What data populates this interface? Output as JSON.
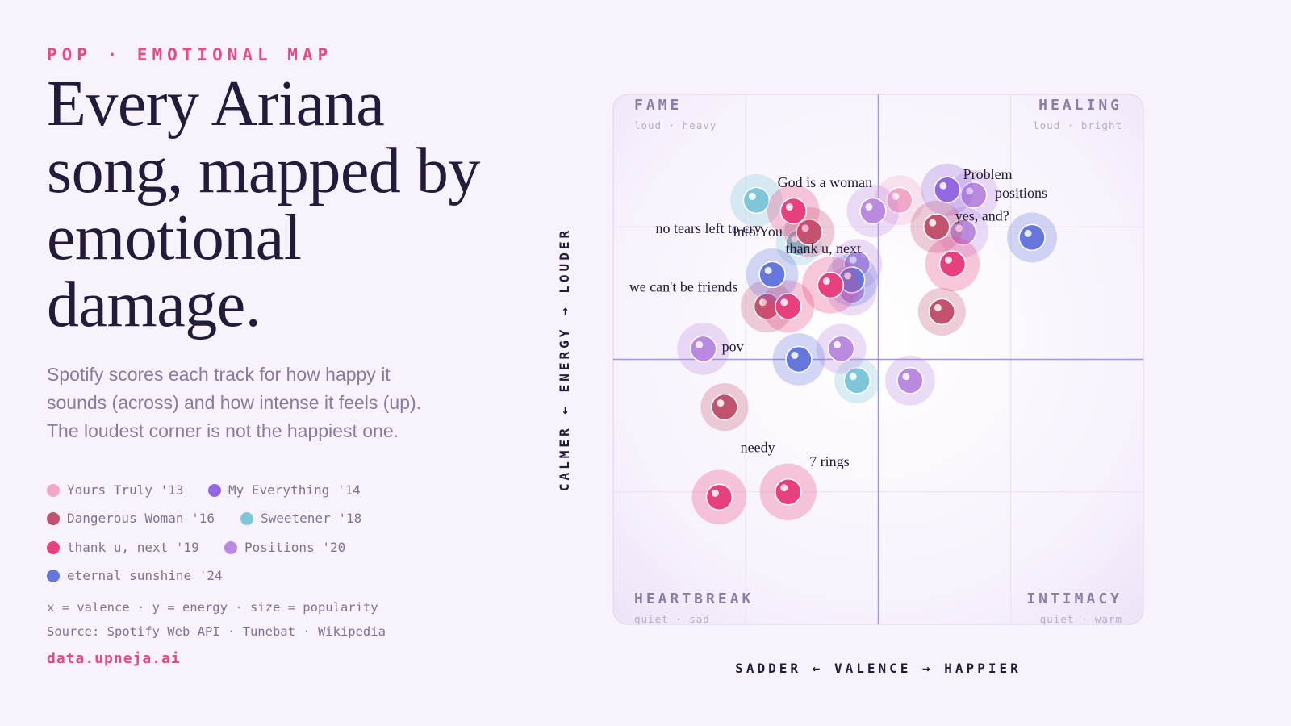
{
  "kicker": "POP · EMOTIONAL MAP",
  "headline": "Every Ariana song, mapped by emotional damage.",
  "subtitle": "Spotify scores each track for how happy it sounds (across) and how intense it feels (up). The loudest corner is not the happiest one.",
  "legend": [
    {
      "label": "Yours Truly '13",
      "color": "#f2a7c8"
    },
    {
      "label": "My Everything '14",
      "color": "#9466e0"
    },
    {
      "label": "Dangerous Woman '16",
      "color": "#c2536e"
    },
    {
      "label": "Sweetener '18",
      "color": "#7ec6d8"
    },
    {
      "label": "thank u, next '19",
      "color": "#e8407e"
    },
    {
      "label": "Positions '20",
      "color": "#b98ae0"
    },
    {
      "label": "eternal sunshine '24",
      "color": "#6677dc"
    }
  ],
  "footnote_encoding": "x = valence · y = energy · size = popularity",
  "footnote_source": "Source: Spotify Web API · Tunebat · Wikipedia",
  "site": "data.upneja.ai",
  "chart_data": {
    "type": "scatter",
    "xlabel": "SADDER ← VALENCE → HAPPIER",
    "ylabel": "CALMER ← ENERGY → LOUDER",
    "xlim": [
      0,
      1
    ],
    "ylim": [
      0,
      1
    ],
    "grid": true,
    "quadrants": [
      {
        "title": "FAME",
        "sub": "loud · heavy",
        "position": "top-left"
      },
      {
        "title": "HEALING",
        "sub": "loud · bright",
        "position": "top-right"
      },
      {
        "title": "HEARTBREAK",
        "sub": "quiet · sad",
        "position": "bottom-left"
      },
      {
        "title": "INTIMACY",
        "sub": "quiet · warm",
        "position": "bottom-right"
      }
    ],
    "series": [
      {
        "name": "Yours Truly '13",
        "color": "#f2a7c8",
        "points": [
          {
            "x": 0.54,
            "y": 0.8,
            "popularity": 0.5
          }
        ]
      },
      {
        "name": "My Everything '14",
        "color": "#9466e0",
        "points": [
          {
            "x": 0.63,
            "y": 0.82,
            "popularity": 0.6,
            "label": "Problem"
          }
        ]
      },
      {
        "name": "Dangerous Woman '16",
        "color": "#c2536e",
        "points": [
          {
            "x": 0.37,
            "y": 0.74,
            "popularity": 0.5,
            "label": "Into You"
          },
          {
            "x": 0.29,
            "y": 0.6,
            "popularity": 0.6
          },
          {
            "x": 0.61,
            "y": 0.75,
            "popularity": 0.6
          },
          {
            "x": 0.62,
            "y": 0.59,
            "popularity": 0.4
          },
          {
            "x": 0.21,
            "y": 0.41,
            "popularity": 0.4
          }
        ]
      },
      {
        "name": "Sweetener '18",
        "color": "#7ec6d8",
        "points": [
          {
            "x": 0.27,
            "y": 0.8,
            "popularity": 0.6,
            "label": "God is a woman"
          },
          {
            "x": 0.35,
            "y": 0.72,
            "popularity": 0.3
          },
          {
            "x": 0.46,
            "y": 0.46,
            "popularity": 0.3
          }
        ]
      },
      {
        "name": "thank u, next '19",
        "color": "#e8407e",
        "points": [
          {
            "x": 0.34,
            "y": 0.78,
            "popularity": 0.6
          },
          {
            "x": 0.41,
            "y": 0.64,
            "popularity": 0.8,
            "label": "thank u, next"
          },
          {
            "x": 0.33,
            "y": 0.6,
            "popularity": 0.6
          },
          {
            "x": 0.64,
            "y": 0.68,
            "popularity": 0.7
          },
          {
            "x": 0.2,
            "y": 0.24,
            "popularity": 0.7
          },
          {
            "x": 0.33,
            "y": 0.25,
            "popularity": 0.8,
            "label": "7 rings"
          }
        ]
      },
      {
        "name": "Positions '20",
        "color": "#b98ae0",
        "points": [
          {
            "x": 0.49,
            "y": 0.78,
            "popularity": 0.6
          },
          {
            "x": 0.68,
            "y": 0.81,
            "popularity": 0.5,
            "label": "positions"
          },
          {
            "x": 0.66,
            "y": 0.74,
            "popularity": 0.5
          },
          {
            "x": 0.46,
            "y": 0.68,
            "popularity": 0.5
          },
          {
            "x": 0.45,
            "y": 0.63,
            "popularity": 0.5
          },
          {
            "x": 0.17,
            "y": 0.52,
            "popularity": 0.6,
            "label": "pov"
          },
          {
            "x": 0.43,
            "y": 0.52,
            "popularity": 0.5
          },
          {
            "x": 0.56,
            "y": 0.46,
            "popularity": 0.5
          }
        ]
      },
      {
        "name": "eternal sunshine '24",
        "color": "#6677dc",
        "points": [
          {
            "x": 0.3,
            "y": 0.66,
            "popularity": 0.6,
            "label": "we can't be friends"
          },
          {
            "x": 0.45,
            "y": 0.65,
            "popularity": 0.6
          },
          {
            "x": 0.35,
            "y": 0.5,
            "popularity": 0.6
          },
          {
            "x": 0.79,
            "y": 0.73,
            "popularity": 0.5,
            "label": "yes, and?"
          }
        ]
      }
    ],
    "annotations": [
      {
        "text": "God is a woman",
        "x": 0.31,
        "y": 0.825
      },
      {
        "text": "Problem",
        "x": 0.66,
        "y": 0.84
      },
      {
        "text": "positions",
        "x": 0.72,
        "y": 0.805
      },
      {
        "text": "yes, and?",
        "x": 0.645,
        "y": 0.762
      },
      {
        "text": "no tears left to cry",
        "x": 0.08,
        "y": 0.738
      },
      {
        "text": "Into You",
        "x": 0.225,
        "y": 0.732
      },
      {
        "text": "thank u, next",
        "x": 0.325,
        "y": 0.7
      },
      {
        "text": "we can't be friends",
        "x": 0.03,
        "y": 0.628
      },
      {
        "text": "pov",
        "x": 0.205,
        "y": 0.515
      },
      {
        "text": "needy",
        "x": 0.24,
        "y": 0.325
      },
      {
        "text": "7 rings",
        "x": 0.37,
        "y": 0.298
      }
    ]
  }
}
